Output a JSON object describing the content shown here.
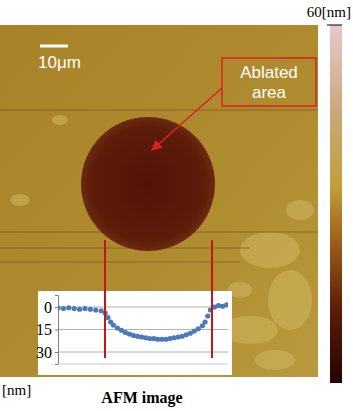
{
  "chart_data": {
    "type": "scatter",
    "title": "AFM image",
    "y_label": "[nm]",
    "x": [
      0,
      2,
      4,
      6,
      8,
      10,
      12,
      14,
      16,
      17.5,
      18.5,
      19.5,
      20.5,
      22,
      23.5,
      25,
      26.5,
      28,
      29.5,
      31,
      32.5,
      34,
      35.5,
      37,
      38.5,
      40,
      41.5,
      43,
      44.5,
      46,
      47.5,
      49,
      50.5,
      52,
      53.5,
      54.5,
      55.5,
      56.5,
      58,
      59.5,
      61,
      62.5
    ],
    "values": [
      0.5,
      1,
      0.5,
      1,
      1.5,
      1,
      1.5,
      2,
      2.5,
      4,
      7,
      10,
      12,
      14,
      15.5,
      17,
      18,
      19,
      19.5,
      20,
      20.5,
      21,
      21,
      21.5,
      21.5,
      21.5,
      21,
      20.5,
      20,
      19.5,
      18.5,
      17.5,
      16,
      14.5,
      12.5,
      10,
      6,
      2,
      0,
      -1,
      -0.5,
      -1.5
    ],
    "color": "#4a7ab8",
    "marker": "circle",
    "xlim": [
      0,
      63
    ],
    "ylim": [
      -8,
      38
    ],
    "yticks": [
      0,
      15,
      30
    ],
    "grid": true,
    "tick_labels": "y",
    "annotations": [
      "10μm",
      "Ablated area"
    ],
    "color_bar": {
      "range": [
        0,
        60
      ],
      "ticks": [
        {
          "value": 60,
          "label": "60[nm]"
        }
      ]
    }
  }
}
